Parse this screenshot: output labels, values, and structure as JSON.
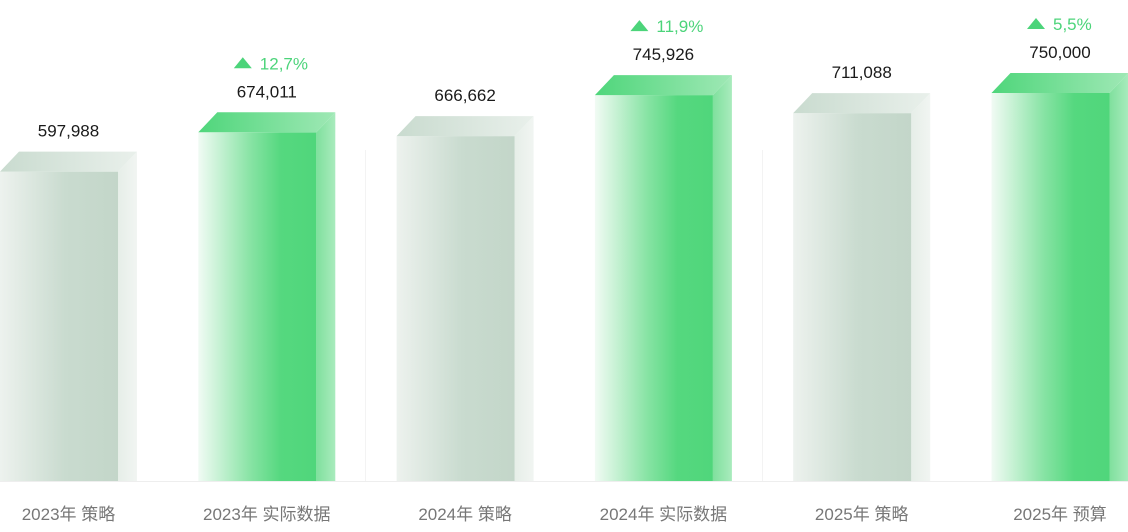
{
  "chart_data": {
    "type": "bar",
    "categories": [
      "2023年 策略",
      "2023年 实际数据",
      "2024年 策略",
      "2024年 实际数据",
      "2025年 策略",
      "2025年 预算"
    ],
    "values": [
      597988,
      674011,
      666662,
      745926,
      711088,
      750000
    ],
    "value_labels": [
      "597,988",
      "674,011",
      "666,662",
      "745,926",
      "711,088",
      "750,000"
    ],
    "bar_kind": [
      "strategy",
      "actual",
      "strategy",
      "actual",
      "strategy",
      "actual"
    ],
    "growth_labels": [
      "",
      "12,7%",
      "",
      "11,9%",
      "",
      "5,5%"
    ],
    "growth_icon": "triangle-up-icon",
    "ylim": [
      0,
      750000
    ],
    "grid": false,
    "colors": {
      "strategy": "#c6d9cd",
      "strategy_light": "#eef3ef",
      "actual": "#53d97e",
      "actual_light": "#eefaf2",
      "growth_text": "#4cd47a",
      "label_text": "#1a1a1a",
      "axis_text": "#777777"
    }
  }
}
